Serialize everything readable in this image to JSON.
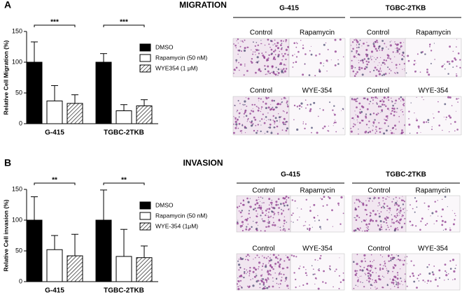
{
  "chart_data": [
    {
      "type": "bar",
      "panel_label": "A",
      "title": "MIGRATION",
      "y_label": "Relative Cell Migration (%)",
      "categories": [
        "G-415",
        "TGBC-2TKB"
      ],
      "significance": [
        "***",
        "***"
      ],
      "ylim": [
        0,
        150
      ],
      "yticks": [
        0,
        50,
        100,
        150
      ],
      "series": [
        {
          "name": "DMSO",
          "color": "#000000",
          "hatch": false,
          "values": [
            100,
            100
          ],
          "errors": [
            33,
            14
          ]
        },
        {
          "name": "Rapamycin (50 nM)",
          "color": "#ffffff",
          "hatch": false,
          "values": [
            37,
            21
          ],
          "errors": [
            25,
            10
          ]
        },
        {
          "name": "WYE354  (1 μM)",
          "color": "#ffffff",
          "hatch": true,
          "values": [
            33,
            29
          ],
          "errors": [
            14,
            10
          ]
        }
      ]
    },
    {
      "type": "bar",
      "panel_label": "B",
      "title": "INVASION",
      "y_label": "Relative Cell invasion (%)",
      "categories": [
        "G-415",
        "TGBC-2TKB"
      ],
      "significance": [
        "**",
        "**"
      ],
      "ylim": [
        0,
        150
      ],
      "yticks": [
        0,
        50,
        100,
        150
      ],
      "series": [
        {
          "name": "DMSO",
          "color": "#000000",
          "hatch": false,
          "values": [
            100,
            100
          ],
          "errors": [
            38,
            49
          ]
        },
        {
          "name": "Rapamycin (50 nM)",
          "color": "#ffffff",
          "hatch": false,
          "values": [
            52,
            41
          ],
          "errors": [
            23,
            44
          ]
        },
        {
          "name": "WYE-354 (1μM)",
          "color": "#ffffff",
          "hatch": true,
          "values": [
            42,
            39
          ],
          "errors": [
            35,
            19
          ]
        }
      ]
    }
  ],
  "micrographs": [
    {
      "cell_lines": [
        {
          "name": "G-415",
          "rows": [
            [
              "Control",
              "Rapamycin"
            ],
            [
              "Control",
              "WYE-354"
            ]
          ]
        },
        {
          "name": "TGBC-2TKB",
          "rows": [
            [
              "Control",
              "Rapamycin"
            ],
            [
              "Control",
              "WYE-354"
            ]
          ]
        }
      ]
    },
    {
      "cell_lines": [
        {
          "name": "G-415",
          "rows": [
            [
              "Control",
              "Rapamycin"
            ],
            [
              "Control",
              "WYE-354"
            ]
          ]
        },
        {
          "name": "TGBC-2TKB",
          "rows": [
            [
              "Control",
              "Rapamycin"
            ],
            [
              "Control",
              "WYE-354"
            ]
          ]
        }
      ]
    }
  ]
}
